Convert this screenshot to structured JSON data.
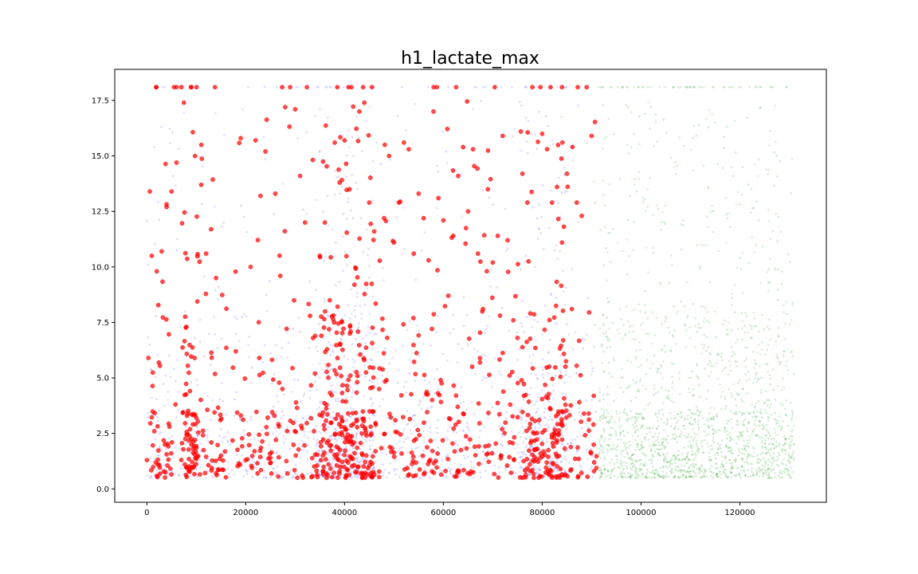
{
  "chart_data": {
    "type": "scatter",
    "title": "h1_lactate_max",
    "xlabel": "",
    "ylabel": "",
    "xlim": [
      -6500,
      137500
    ],
    "ylim": [
      -0.6,
      18.9
    ],
    "grid": false,
    "legend": "none",
    "x_ticks": [
      0,
      20000,
      40000,
      60000,
      80000,
      100000,
      120000
    ],
    "x_tick_labels": [
      "0",
      "20000",
      "40000",
      "60000",
      "80000",
      "100000",
      "120000"
    ],
    "y_ticks": [
      0.0,
      2.5,
      5.0,
      7.5,
      10.0,
      12.5,
      15.0,
      17.5
    ],
    "y_tick_labels": [
      "0.0",
      "2.5",
      "5.0",
      "7.5",
      "10.0",
      "12.5",
      "15.0",
      "17.5"
    ],
    "series": [
      {
        "color": "#6b6bff",
        "marker": "small-dot",
        "alpha": 0.25,
        "x_range": [
          0,
          91000
        ],
        "y_range": [
          0.4,
          18.1
        ],
        "density_note": "dense cluster y 0.5-3.5, densest near x 35000-45000 and 75000-85000"
      },
      {
        "color": "#ff0000",
        "marker": "circle",
        "alpha": 0.7,
        "x_range": [
          0,
          91000
        ],
        "y_range": [
          0.4,
          18.1
        ],
        "sample_points": [
          [
            0,
            1.3
          ],
          [
            300,
            5.9
          ],
          [
            600,
            13.4
          ],
          [
            1000,
            10.5
          ],
          [
            1500,
            2.6
          ],
          [
            2000,
            9.8
          ],
          [
            3000,
            10.7
          ],
          [
            4000,
            12.7
          ],
          [
            5000,
            13.4
          ],
          [
            5500,
            18.1
          ],
          [
            6000,
            14.7
          ],
          [
            7000,
            18.1
          ],
          [
            7500,
            17.4
          ],
          [
            8000,
            7.3
          ],
          [
            9000,
            2.0
          ],
          [
            9500,
            1.0
          ],
          [
            10000,
            3.2
          ],
          [
            11000,
            13.7
          ],
          [
            12000,
            10.6
          ],
          [
            13000,
            11.7
          ],
          [
            14000,
            9.5
          ],
          [
            15000,
            1.5
          ],
          [
            18000,
            6.2
          ],
          [
            19000,
            15.8
          ],
          [
            20000,
            1.3
          ],
          [
            21000,
            10.0
          ],
          [
            22000,
            15.7
          ],
          [
            23000,
            13.2
          ],
          [
            24000,
            15.2
          ],
          [
            25000,
            1.4
          ],
          [
            26000,
            13.3
          ],
          [
            27000,
            9.6
          ],
          [
            28000,
            17.2
          ],
          [
            29000,
            18.1
          ],
          [
            30000,
            17.1
          ],
          [
            31000,
            14.1
          ],
          [
            32000,
            12.0
          ],
          [
            33000,
            7.8
          ],
          [
            34000,
            5.2
          ],
          [
            35000,
            10.5
          ],
          [
            36000,
            12.0
          ],
          [
            37000,
            8.5
          ],
          [
            38000,
            15.6
          ],
          [
            39000,
            13.8
          ],
          [
            40000,
            15.7
          ],
          [
            41000,
            13.5
          ],
          [
            42000,
            9.2
          ],
          [
            43000,
            17.0
          ],
          [
            44000,
            17.4
          ],
          [
            45000,
            12.9
          ],
          [
            46000,
            11.6
          ],
          [
            47000,
            4.5
          ],
          [
            48000,
            12.2
          ],
          [
            49000,
            15.0
          ],
          [
            50000,
            11.1
          ],
          [
            51000,
            12.9
          ],
          [
            52000,
            15.6
          ],
          [
            53000,
            15.3
          ],
          [
            54000,
            10.6
          ],
          [
            55000,
            13.3
          ],
          [
            56000,
            12.2
          ],
          [
            57000,
            10.3
          ],
          [
            58000,
            17.0
          ],
          [
            59000,
            13.1
          ],
          [
            60000,
            12.1
          ],
          [
            61000,
            8.7
          ],
          [
            62000,
            11.4
          ],
          [
            63000,
            14.1
          ],
          [
            64000,
            15.4
          ],
          [
            65000,
            12.5
          ],
          [
            66000,
            15.3
          ],
          [
            67000,
            10.6
          ],
          [
            68000,
            8.1
          ],
          [
            69000,
            13.5
          ],
          [
            70000,
            10.2
          ],
          [
            71000,
            11.4
          ],
          [
            72000,
            15.9
          ],
          [
            73000,
            11.2
          ],
          [
            75000,
            6.8
          ],
          [
            76000,
            14.2
          ],
          [
            77000,
            12.9
          ],
          [
            78000,
            18.1
          ],
          [
            79000,
            1.8
          ],
          [
            80000,
            16.0
          ],
          [
            81000,
            15.3
          ],
          [
            82000,
            12.9
          ],
          [
            83000,
            13.6
          ],
          [
            84000,
            11.1
          ],
          [
            85000,
            14.2
          ],
          [
            86000,
            8.1
          ],
          [
            87000,
            12.9
          ],
          [
            88000,
            12.3
          ],
          [
            89000,
            18.1
          ],
          [
            90000,
            15.9
          ],
          [
            90500,
            0.8
          ]
        ]
      },
      {
        "color": "#2ca02c",
        "marker": "small-dot",
        "alpha": 0.2,
        "x_range": [
          91500,
          131000
        ],
        "y_range": [
          0.4,
          18.1
        ],
        "density_note": "dense band y 0.5-3.5 across full x range, sparse above 7.5"
      }
    ]
  }
}
